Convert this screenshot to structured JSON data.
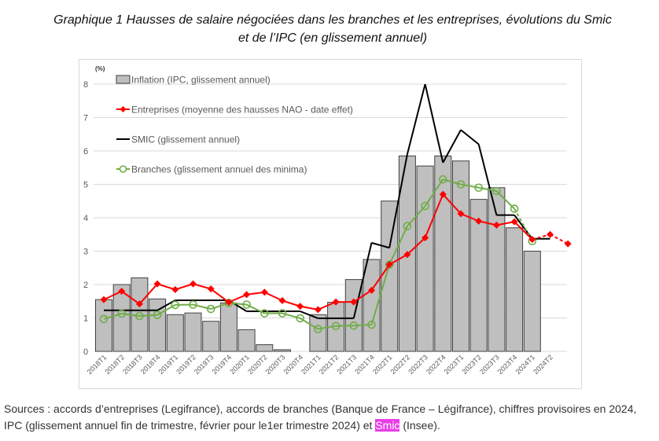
{
  "title": "Graphique 1 Hausses de salaire négociées dans les branches et les entreprises, évolutions du Smic et de l’IPC (en glissement annuel)",
  "footer": {
    "before": "Sources : accords d’entreprises (Legifrance), accords de branches (Banque de France – Légifrance), chiffres provisoires en 2024, IPC (glissement annuel fin de trimestre, février pour le1er trimestre 2024) et ",
    "highlight": "Smic",
    "after": " (Insee)."
  },
  "chart_data": {
    "type": "bar+line",
    "ylabel": "(%)",
    "ylim": [
      0,
      8
    ],
    "yticks": [
      "0",
      "1",
      "2",
      "3",
      "4",
      "5",
      "6",
      "7",
      "8"
    ],
    "grid": true,
    "legend_placement": "top-left",
    "categories": [
      "2018T1",
      "2018T2",
      "2018T3",
      "2018T4",
      "2019T1",
      "2019T2",
      "2019T3",
      "2019T4",
      "2020T1",
      "2020T2",
      "2020T3",
      "2020T4",
      "2021T1",
      "2021T2",
      "2021T3",
      "2021T4",
      "2022T1",
      "2022T2",
      "2022T3",
      "2022T4",
      "2023T1",
      "2023T2",
      "2023T3",
      "2023T4",
      "2024T1",
      "2024T2",
      ""
    ],
    "series": [
      {
        "name": "Inflation (IPC, glissement annuel)",
        "kind": "bar",
        "color": "#bfbfbf",
        "values": [
          1.55,
          2.0,
          2.2,
          1.57,
          1.1,
          1.15,
          0.9,
          1.45,
          0.65,
          0.2,
          0.05,
          0,
          1.1,
          1.47,
          2.15,
          2.75,
          4.5,
          5.85,
          5.55,
          5.85,
          5.7,
          4.55,
          4.9,
          3.7,
          3.0,
          null,
          null
        ]
      },
      {
        "name": "Entreprises (moyenne des hausses NAO - date effet)",
        "kind": "line",
        "marker": "diamond",
        "color": "#ff0000",
        "dashed_from": 24,
        "values": [
          1.55,
          1.8,
          1.42,
          2.02,
          1.85,
          2.02,
          1.87,
          1.47,
          1.7,
          1.77,
          1.52,
          1.35,
          1.25,
          1.48,
          1.48,
          1.83,
          2.6,
          2.9,
          3.4,
          4.7,
          4.12,
          3.9,
          3.78,
          3.88,
          3.35,
          3.5,
          3.22
        ]
      },
      {
        "name": "SMIC (glissement annuel)",
        "kind": "line",
        "marker": "none",
        "color": "#000000",
        "values": [
          1.23,
          1.23,
          1.23,
          1.23,
          1.53,
          1.53,
          1.53,
          1.53,
          1.2,
          1.2,
          1.2,
          1.2,
          0.99,
          0.99,
          0.99,
          3.25,
          3.1,
          5.9,
          8.0,
          5.65,
          6.63,
          6.2,
          4.08,
          4.08,
          3.37,
          3.37,
          null
        ]
      },
      {
        "name": "Branches (glissement annuel des minima)",
        "kind": "line",
        "marker": "circle",
        "color": "#70ad47",
        "dashed_from": 23,
        "values": [
          0.97,
          1.13,
          1.06,
          1.09,
          1.39,
          1.4,
          1.27,
          1.45,
          1.4,
          1.14,
          1.14,
          0.99,
          0.67,
          0.76,
          0.77,
          0.8,
          2.6,
          3.75,
          4.35,
          5.15,
          5.0,
          4.9,
          4.8,
          4.27,
          3.3,
          null,
          null
        ]
      }
    ]
  }
}
